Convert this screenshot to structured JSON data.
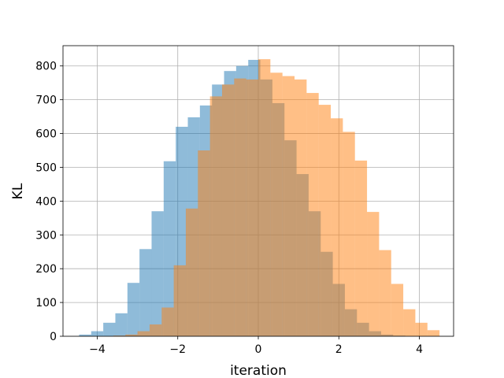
{
  "chart_data": {
    "type": "bar",
    "subtype": "histogram-overlay",
    "title": "",
    "xlabel": "iteration",
    "ylabel": "KL",
    "xlim": [
      -4.85,
      4.85
    ],
    "ylim": [
      0,
      860
    ],
    "xticks": [
      -4,
      -2,
      0,
      2,
      4
    ],
    "yticks": [
      0,
      100,
      200,
      300,
      400,
      500,
      600,
      700,
      800
    ],
    "grid": true,
    "series": [
      {
        "color": "#1f77b4",
        "opacity": 0.5,
        "bin_edges": [
          -4.45,
          -4.15,
          -3.85,
          -3.55,
          -3.25,
          -2.95,
          -2.65,
          -2.35,
          -2.05,
          -1.75,
          -1.45,
          -1.15,
          -0.85,
          -0.55,
          -0.25,
          0.05,
          0.35,
          0.65,
          0.95,
          1.25,
          1.55,
          1.85,
          2.15,
          2.45,
          2.75,
          3.05,
          3.35,
          3.65,
          3.95
        ],
        "values": [
          5,
          15,
          40,
          68,
          158,
          258,
          370,
          518,
          620,
          648,
          683,
          745,
          785,
          800,
          818,
          760,
          690,
          580,
          480,
          370,
          250,
          155,
          80,
          40,
          15,
          5,
          2,
          0
        ]
      },
      {
        "color": "#ff7f0e",
        "opacity": 0.5,
        "bin_edges": [
          -3.9,
          -3.6,
          -3.3,
          -3.0,
          -2.7,
          -2.4,
          -2.1,
          -1.8,
          -1.5,
          -1.2,
          -0.9,
          -0.6,
          -0.3,
          0.0,
          0.3,
          0.6,
          0.9,
          1.2,
          1.5,
          1.8,
          2.1,
          2.4,
          2.7,
          3.0,
          3.3,
          3.6,
          3.9,
          4.2,
          4.5
        ],
        "values": [
          0,
          2,
          5,
          15,
          35,
          85,
          210,
          378,
          550,
          710,
          745,
          763,
          760,
          820,
          780,
          770,
          760,
          720,
          685,
          645,
          605,
          520,
          368,
          255,
          155,
          80,
          40,
          18
        ]
      }
    ]
  }
}
